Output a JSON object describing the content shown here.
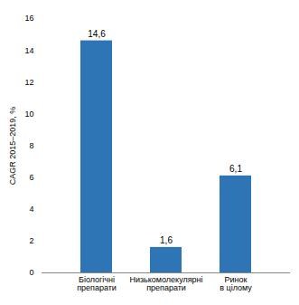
{
  "chart_data": {
    "type": "bar",
    "categories": [
      "Біологічні\nпрепарати",
      "Низькомолекулярні\nпрепарати",
      "Ринок\nв цілому"
    ],
    "values": [
      14.6,
      1.6,
      6.1
    ],
    "value_labels": [
      "14,6",
      "1,6",
      "6,1"
    ],
    "data_labels": true,
    "color": "#2E75B6",
    "ylabel": "CAGR 2015–2019, %",
    "ylim": [
      0,
      16
    ],
    "yticks": [
      0,
      2,
      4,
      6,
      8,
      10,
      12,
      14,
      16
    ],
    "grid": false
  }
}
